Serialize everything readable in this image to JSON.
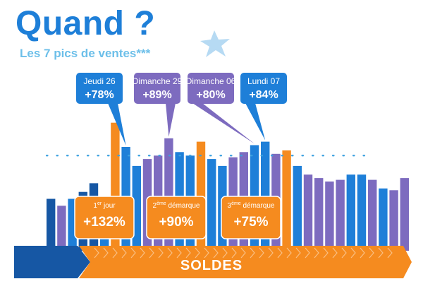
{
  "header": {
    "title": "Quand ?",
    "subtitle": "Les 7 pics de ventes***"
  },
  "icons": {
    "star": "star-icon"
  },
  "colors": {
    "blue": "#1e7fd8",
    "dark_blue": "#1657a4",
    "purple": "#7d6bbf",
    "orange": "#f58b1f",
    "dotted_line": "#3aa0e0"
  },
  "chart_data": {
    "type": "bar",
    "title": "",
    "xlabel": "",
    "ylabel": "",
    "ylim": [
      0,
      100
    ],
    "gridline": 55,
    "bars": [
      {
        "v": 30,
        "c": "dark_blue"
      },
      {
        "v": 26,
        "c": "purple"
      },
      {
        "v": 30,
        "c": "blue"
      },
      {
        "v": 34,
        "c": "dark_blue"
      },
      {
        "v": 39,
        "c": "dark_blue"
      },
      {
        "v": 31,
        "c": "blue"
      },
      {
        "v": 74,
        "c": "orange"
      },
      {
        "v": 60,
        "c": "blue"
      },
      {
        "v": 49,
        "c": "blue"
      },
      {
        "v": 53,
        "c": "purple"
      },
      {
        "v": 55,
        "c": "purple"
      },
      {
        "v": 65,
        "c": "purple"
      },
      {
        "v": 57,
        "c": "blue"
      },
      {
        "v": 55,
        "c": "blue"
      },
      {
        "v": 63,
        "c": "orange"
      },
      {
        "v": 53,
        "c": "blue"
      },
      {
        "v": 49,
        "c": "blue"
      },
      {
        "v": 54,
        "c": "purple"
      },
      {
        "v": 57,
        "c": "purple"
      },
      {
        "v": 61,
        "c": "blue"
      },
      {
        "v": 63,
        "c": "blue"
      },
      {
        "v": 56,
        "c": "purple"
      },
      {
        "v": 58,
        "c": "orange"
      },
      {
        "v": 49,
        "c": "blue"
      },
      {
        "v": 44,
        "c": "purple"
      },
      {
        "v": 42,
        "c": "purple"
      },
      {
        "v": 40,
        "c": "purple"
      },
      {
        "v": 41,
        "c": "purple"
      },
      {
        "v": 44,
        "c": "blue"
      },
      {
        "v": 44,
        "c": "blue"
      },
      {
        "v": 41,
        "c": "purple"
      },
      {
        "v": 36,
        "c": "blue"
      },
      {
        "v": 35,
        "c": "purple"
      },
      {
        "v": 42,
        "c": "purple"
      }
    ],
    "callouts": [
      {
        "label": "Jeudi 26",
        "value": "+78%",
        "color": "blue",
        "bar": 7
      },
      {
        "label": "Dimanche 29",
        "value": "+89%",
        "color": "purple",
        "bar": 11
      },
      {
        "label": "Dimanche 06",
        "value": "+80%",
        "color": "purple",
        "bar": 19
      },
      {
        "label": "Lundi 07",
        "value": "+84%",
        "color": "blue",
        "bar": 20
      }
    ],
    "orange_boxes": [
      {
        "sup": "er",
        "label_pre": "1",
        "label_post": " jour",
        "value": "+132%",
        "bar": 6
      },
      {
        "sup": "ème",
        "label_pre": "2",
        "label_post": " démarque",
        "value": "+90%",
        "bar": 14
      },
      {
        "sup": "ème",
        "label_pre": "3",
        "label_post": " démarque",
        "value": "+75%",
        "bar": 22
      }
    ],
    "banner": "SOLDES"
  }
}
